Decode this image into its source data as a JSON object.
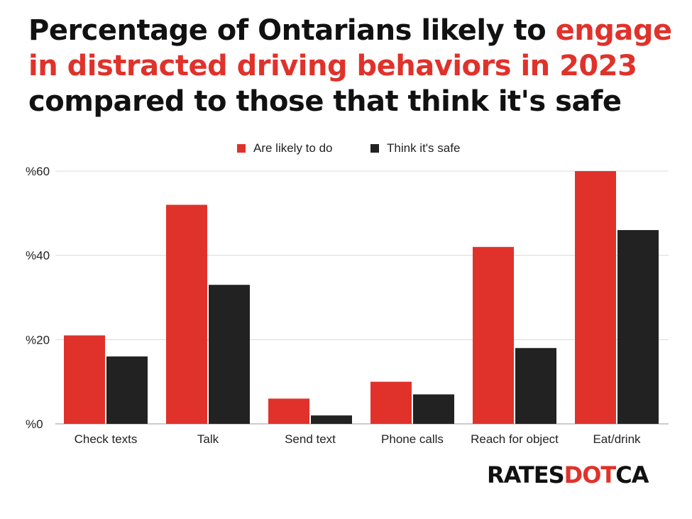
{
  "title": {
    "part1": "Percentage of Ontarians likely to ",
    "part2": "engage in distracted driving behaviors in 2023",
    "part3": "compared to those that think it's safe"
  },
  "logo": {
    "part1": "RATES",
    "part2": "DOT",
    "part3": "CA"
  },
  "colors": {
    "accent": "#e0322b",
    "dark": "#222222",
    "grid": "#d9d9d9",
    "text": "#111111"
  },
  "chart_data": {
    "type": "bar",
    "categories": [
      "Check texts",
      "Talk",
      "Send text",
      "Phone calls",
      "Reach for object",
      "Eat/drink"
    ],
    "series": [
      {
        "name": "Are likely to do",
        "color": "#e0322b",
        "values": [
          21,
          52,
          6,
          10,
          42,
          60
        ]
      },
      {
        "name": "Think it's safe",
        "color": "#222222",
        "values": [
          16,
          33,
          2,
          7,
          18,
          46
        ]
      }
    ],
    "yticks": [
      "%0",
      "%20",
      "%40",
      "%60"
    ],
    "ytick_values": [
      0,
      20,
      40,
      60
    ],
    "ylim": [
      0,
      60
    ],
    "legend_position": "top-center",
    "xlabel": "",
    "ylabel": ""
  }
}
